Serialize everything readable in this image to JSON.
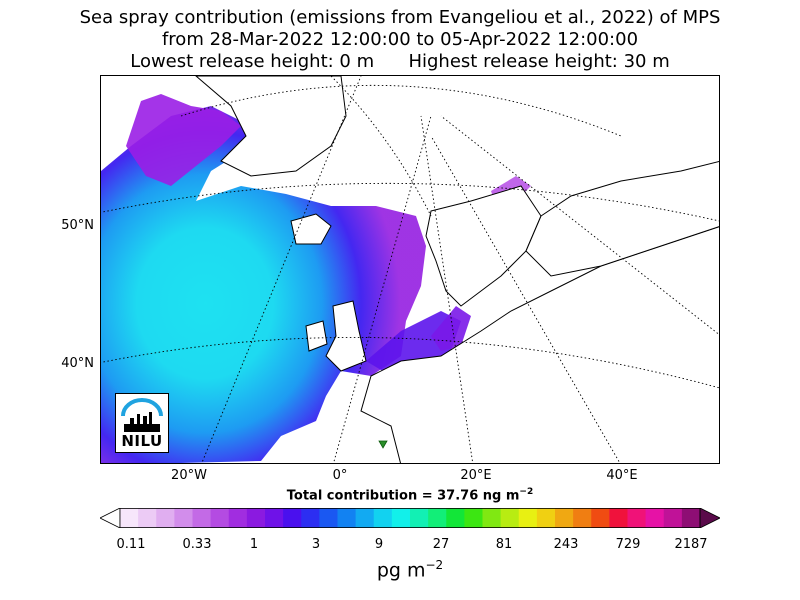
{
  "title": {
    "line1": "Sea spray contribution (emissions from Evangeliou et al., 2022) of MPS",
    "line2": "from 28-Mar-2022 12:00:00 to 05-Apr-2022 12:00:00",
    "line3": "Lowest release height: 0 m      Highest release height: 30 m"
  },
  "map": {
    "lat_labels": [
      "50°N",
      "40°N"
    ],
    "lon_labels": [
      "20°W",
      "0°",
      "20°E",
      "40°E"
    ]
  },
  "total_contribution": "Total contribution = 37.76 ng m",
  "total_exponent": "−2",
  "colorbar": {
    "ticks": [
      "0.11",
      "0.33",
      "1",
      "3",
      "9",
      "27",
      "81",
      "243",
      "729",
      "2187"
    ],
    "unit_base": "pg m",
    "unit_exponent": "−2"
  },
  "logo": {
    "text": "NILU"
  },
  "colors": {
    "scale": [
      "#f7e6fb",
      "#eccbf5",
      "#e0aef0",
      "#d28deb",
      "#c36ae6",
      "#b44be2",
      "#a12de0",
      "#8b1ae0",
      "#6f12e8",
      "#4a10ee",
      "#2c2ef2",
      "#1a58f2",
      "#1282f2",
      "#12aaf2",
      "#12d2f0",
      "#12f0ea",
      "#12f0b4",
      "#12ee78",
      "#12e638",
      "#3ce612",
      "#80e812",
      "#b8ec12",
      "#e8f012",
      "#f0d012",
      "#f0a812",
      "#f07e12",
      "#f04c12",
      "#f0123c",
      "#f01278",
      "#e612a6",
      "#c01298",
      "#8e0e74"
    ],
    "logo_blue": "#1fa3e0"
  }
}
